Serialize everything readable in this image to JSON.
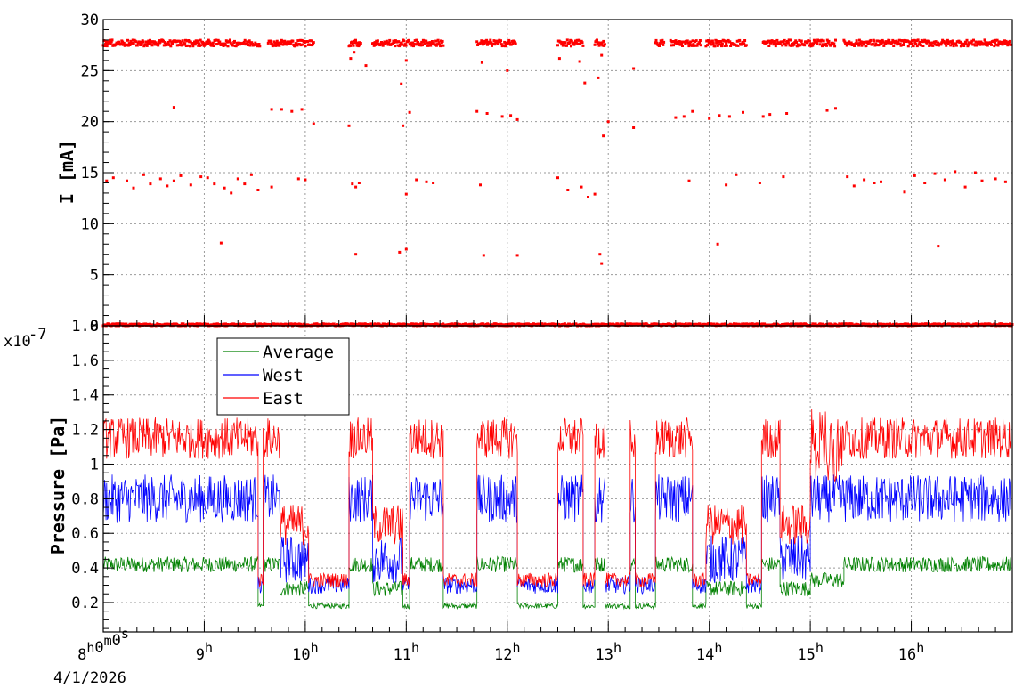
{
  "chart_data": [
    {
      "type": "scatter",
      "title": "",
      "xlabel": "",
      "ylabel": "I [mA]",
      "xlim": [
        "08:00:00",
        "17:00:00"
      ],
      "ylim": [
        0,
        30
      ],
      "y_ticks": [
        "0",
        "5",
        "10",
        "15",
        "20",
        "25",
        "30"
      ],
      "grid": true,
      "series": [
        {
          "color": "#ff0000",
          "marker": "square",
          "bands": [
            {
              "level": 27.7,
              "spread": 0.3,
              "intervals": [
                [
                  "08:00",
                  "09:33"
                ],
                [
                  "09:38",
                  "10:05"
                ],
                [
                  "10:26",
                  "10:33"
                ],
                [
                  "10:40",
                  "11:22"
                ],
                [
                  "11:42",
                  "12:05"
                ],
                [
                  "12:30",
                  "12:45"
                ],
                [
                  "12:52",
                  "12:58"
                ],
                [
                  "13:28",
                  "13:33"
                ],
                [
                  "13:37",
                  "13:55"
                ],
                [
                  "13:58",
                  "14:22"
                ],
                [
                  "14:32",
                  "15:15"
                ],
                [
                  "15:20",
                  "16:59"
                ]
              ]
            },
            {
              "level": 0.1,
              "spread": 0.1,
              "intervals": [
                [
                  "08:00",
                  "17:00"
                ]
              ]
            }
          ],
          "outliers": [
            {
              "x": "08:42",
              "y": 21.4
            },
            {
              "x": "09:40",
              "y": 21.2
            },
            {
              "x": "09:46",
              "y": 21.2
            },
            {
              "x": "09:52",
              "y": 21.0
            },
            {
              "x": "09:58",
              "y": 21.2
            },
            {
              "x": "10:05",
              "y": 19.8
            },
            {
              "x": "10:26",
              "y": 19.6
            },
            {
              "x": "10:58",
              "y": 19.6
            },
            {
              "x": "11:02",
              "y": 20.9
            },
            {
              "x": "11:42",
              "y": 21.0
            },
            {
              "x": "11:48",
              "y": 20.8
            },
            {
              "x": "11:57",
              "y": 20.5
            },
            {
              "x": "12:02",
              "y": 20.6
            },
            {
              "x": "12:06",
              "y": 20.2
            },
            {
              "x": "12:57",
              "y": 18.6
            },
            {
              "x": "13:00",
              "y": 20.0
            },
            {
              "x": "13:15",
              "y": 19.4
            },
            {
              "x": "13:40",
              "y": 20.4
            },
            {
              "x": "13:45",
              "y": 20.5
            },
            {
              "x": "13:50",
              "y": 21.0
            },
            {
              "x": "14:00",
              "y": 20.3
            },
            {
              "x": "14:06",
              "y": 20.6
            },
            {
              "x": "14:12",
              "y": 20.5
            },
            {
              "x": "14:20",
              "y": 20.9
            },
            {
              "x": "14:32",
              "y": 20.5
            },
            {
              "x": "14:36",
              "y": 20.7
            },
            {
              "x": "14:46",
              "y": 20.8
            },
            {
              "x": "15:10",
              "y": 21.1
            },
            {
              "x": "15:15",
              "y": 21.3
            },
            {
              "x": "08:02",
              "y": 14.2
            },
            {
              "x": "08:06",
              "y": 14.5
            },
            {
              "x": "08:14",
              "y": 14.2
            },
            {
              "x": "08:18",
              "y": 13.5
            },
            {
              "x": "08:24",
              "y": 14.8
            },
            {
              "x": "08:28",
              "y": 13.9
            },
            {
              "x": "08:34",
              "y": 14.4
            },
            {
              "x": "08:38",
              "y": 13.7
            },
            {
              "x": "08:42",
              "y": 14.2
            },
            {
              "x": "08:46",
              "y": 14.7
            },
            {
              "x": "08:52",
              "y": 13.8
            },
            {
              "x": "08:58",
              "y": 14.6
            },
            {
              "x": "09:02",
              "y": 14.5
            },
            {
              "x": "09:06",
              "y": 13.9
            },
            {
              "x": "09:12",
              "y": 13.5
            },
            {
              "x": "09:16",
              "y": 13.0
            },
            {
              "x": "09:20",
              "y": 14.4
            },
            {
              "x": "09:24",
              "y": 13.9
            },
            {
              "x": "09:28",
              "y": 14.8
            },
            {
              "x": "09:32",
              "y": 13.3
            },
            {
              "x": "09:40",
              "y": 13.6
            },
            {
              "x": "09:56",
              "y": 14.4
            },
            {
              "x": "10:00",
              "y": 14.3
            },
            {
              "x": "10:28",
              "y": 13.9
            },
            {
              "x": "10:30",
              "y": 13.6
            },
            {
              "x": "10:32",
              "y": 14.0
            },
            {
              "x": "11:00",
              "y": 12.9
            },
            {
              "x": "11:06",
              "y": 14.3
            },
            {
              "x": "11:12",
              "y": 14.1
            },
            {
              "x": "11:16",
              "y": 14.0
            },
            {
              "x": "11:44",
              "y": 13.8
            },
            {
              "x": "12:30",
              "y": 14.5
            },
            {
              "x": "12:36",
              "y": 13.3
            },
            {
              "x": "12:44",
              "y": 13.6
            },
            {
              "x": "12:48",
              "y": 12.6
            },
            {
              "x": "12:52",
              "y": 12.9
            },
            {
              "x": "13:48",
              "y": 14.2
            },
            {
              "x": "14:10",
              "y": 13.8
            },
            {
              "x": "14:16",
              "y": 14.8
            },
            {
              "x": "14:30",
              "y": 14.0
            },
            {
              "x": "14:44",
              "y": 14.6
            },
            {
              "x": "15:22",
              "y": 14.6
            },
            {
              "x": "15:26",
              "y": 13.7
            },
            {
              "x": "15:32",
              "y": 14.3
            },
            {
              "x": "15:38",
              "y": 14.0
            },
            {
              "x": "15:42",
              "y": 14.1
            },
            {
              "x": "15:56",
              "y": 13.1
            },
            {
              "x": "16:02",
              "y": 14.7
            },
            {
              "x": "16:08",
              "y": 14.0
            },
            {
              "x": "16:14",
              "y": 14.9
            },
            {
              "x": "16:20",
              "y": 14.3
            },
            {
              "x": "16:26",
              "y": 15.1
            },
            {
              "x": "16:32",
              "y": 13.6
            },
            {
              "x": "16:38",
              "y": 15.0
            },
            {
              "x": "16:42",
              "y": 14.2
            },
            {
              "x": "16:50",
              "y": 14.4
            },
            {
              "x": "16:56",
              "y": 14.1
            },
            {
              "x": "09:10",
              "y": 8.1
            },
            {
              "x": "10:30",
              "y": 7.0
            },
            {
              "x": "10:56",
              "y": 7.2
            },
            {
              "x": "11:00",
              "y": 7.5
            },
            {
              "x": "11:46",
              "y": 6.9
            },
            {
              "x": "12:06",
              "y": 6.9
            },
            {
              "x": "12:55",
              "y": 7.0
            },
            {
              "x": "12:56",
              "y": 6.1
            },
            {
              "x": "14:05",
              "y": 8.0
            },
            {
              "x": "16:16",
              "y": 7.8
            },
            {
              "x": "10:27",
              "y": 26.2
            },
            {
              "x": "10:29",
              "y": 26.8
            },
            {
              "x": "10:36",
              "y": 25.5
            },
            {
              "x": "10:57",
              "y": 23.7
            },
            {
              "x": "11:00",
              "y": 26.0
            },
            {
              "x": "11:45",
              "y": 25.8
            },
            {
              "x": "12:00",
              "y": 25.0
            },
            {
              "x": "12:31",
              "y": 26.2
            },
            {
              "x": "12:43",
              "y": 25.9
            },
            {
              "x": "12:46",
              "y": 23.8
            },
            {
              "x": "12:54",
              "y": 24.3
            },
            {
              "x": "12:56",
              "y": 26.5
            },
            {
              "x": "13:15",
              "y": 25.2
            }
          ]
        }
      ]
    },
    {
      "type": "line",
      "title": "",
      "xlabel": "",
      "ylabel": "Pressure [Pa]",
      "y_multiplier": "x10",
      "y_multiplier_exp": "-7",
      "ylim": [
        0.03,
        1.8
      ],
      "y_ticks": [
        "0.2",
        "0.4",
        "0.6",
        "0.8",
        "1",
        "1.2",
        "1.4",
        "1.6",
        "1.8"
      ],
      "grid": true,
      "legend": "top-left",
      "segments": [
        {
          "from": "08:00",
          "to": "09:32",
          "state": "high"
        },
        {
          "from": "09:32",
          "to": "09:35",
          "state": "low"
        },
        {
          "from": "09:35",
          "to": "09:45",
          "state": "high"
        },
        {
          "from": "09:45",
          "to": "10:02",
          "state": "mid"
        },
        {
          "from": "10:02",
          "to": "10:26",
          "state": "low"
        },
        {
          "from": "10:26",
          "to": "10:40",
          "state": "high"
        },
        {
          "from": "10:40",
          "to": "10:58",
          "state": "mid"
        },
        {
          "from": "10:58",
          "to": "11:02",
          "state": "low"
        },
        {
          "from": "11:02",
          "to": "11:22",
          "state": "high"
        },
        {
          "from": "11:22",
          "to": "11:42",
          "state": "low"
        },
        {
          "from": "11:42",
          "to": "12:06",
          "state": "high"
        },
        {
          "from": "12:06",
          "to": "12:30",
          "state": "low"
        },
        {
          "from": "12:30",
          "to": "12:45",
          "state": "high"
        },
        {
          "from": "12:45",
          "to": "12:52",
          "state": "low"
        },
        {
          "from": "12:52",
          "to": "12:58",
          "state": "high"
        },
        {
          "from": "12:58",
          "to": "13:13",
          "state": "low"
        },
        {
          "from": "13:13",
          "to": "13:16",
          "state": "high"
        },
        {
          "from": "13:16",
          "to": "13:28",
          "state": "low"
        },
        {
          "from": "13:28",
          "to": "13:50",
          "state": "high"
        },
        {
          "from": "13:50",
          "to": "13:58",
          "state": "low"
        },
        {
          "from": "13:58",
          "to": "14:22",
          "state": "mid"
        },
        {
          "from": "14:22",
          "to": "14:31",
          "state": "low"
        },
        {
          "from": "14:31",
          "to": "14:42",
          "state": "high"
        },
        {
          "from": "14:42",
          "to": "15:00",
          "state": "mid"
        },
        {
          "from": "15:00",
          "to": "15:20",
          "state": "noisy"
        },
        {
          "from": "15:20",
          "to": "16:59",
          "state": "high"
        }
      ],
      "levels": {
        "high": {
          "Average": 0.42,
          "West": 0.8,
          "East": 1.15
        },
        "mid": {
          "Average": 0.28,
          "West": 0.45,
          "East": 0.65
        },
        "noisy": {
          "Average": 0.33,
          "West": 0.8,
          "East": 1.12
        },
        "low": {
          "Average": 0.18,
          "West": 0.3,
          "East": 0.33
        }
      },
      "series": [
        {
          "name": "Average",
          "color": "#008000"
        },
        {
          "name": "West",
          "color": "#0000ff"
        },
        {
          "name": "East",
          "color": "#ff0000"
        }
      ]
    }
  ],
  "x_axis": {
    "ticks": [
      {
        "time": "08:00",
        "label": "8",
        "sup": "h",
        "extra": "0",
        "extra_sup": "m",
        "extra2": "0",
        "extra2_sup": "s"
      },
      {
        "time": "09:00",
        "label": "9",
        "sup": "h"
      },
      {
        "time": "10:00",
        "label": "10",
        "sup": "h"
      },
      {
        "time": "11:00",
        "label": "11",
        "sup": "h"
      },
      {
        "time": "12:00",
        "label": "12",
        "sup": "h"
      },
      {
        "time": "13:00",
        "label": "13",
        "sup": "h"
      },
      {
        "time": "14:00",
        "label": "14",
        "sup": "h"
      },
      {
        "time": "15:00",
        "label": "15",
        "sup": "h"
      },
      {
        "time": "16:00",
        "label": "16",
        "sup": "h"
      }
    ],
    "date_label": "4/1/2026",
    "start": "08:00",
    "end": "17:00"
  },
  "colors": {
    "current": "#ff0000",
    "average": "#008000",
    "west": "#0000ff",
    "east": "#ff0000",
    "grid": "#9a9a9a"
  }
}
